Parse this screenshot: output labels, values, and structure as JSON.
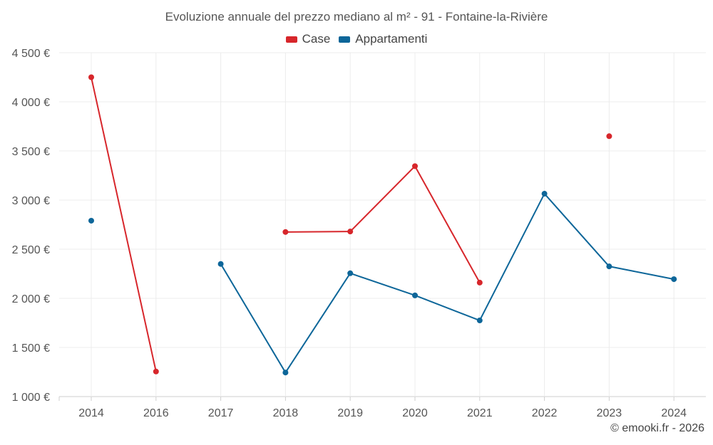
{
  "chart_data": {
    "type": "line",
    "title": "Evoluzione annuale del prezzo mediano al m² - 91 - Fontaine-la-Rivière",
    "categories": [
      "2014",
      "2016",
      "2017",
      "2018",
      "2019",
      "2020",
      "2021",
      "2022",
      "2023",
      "2024"
    ],
    "series": [
      {
        "name": "Case",
        "color": "#d7262b",
        "values": [
          4250,
          1255,
          null,
          2675,
          2680,
          3345,
          2160,
          null,
          3650,
          null
        ]
      },
      {
        "name": "Appartamenti",
        "color": "#0d6699",
        "values": [
          2790,
          null,
          2350,
          1245,
          2255,
          2030,
          1775,
          3065,
          2325,
          2195
        ]
      }
    ],
    "y_ticks": [
      "1 000 €",
      "1 500 €",
      "2 000 €",
      "2 500 €",
      "3 000 €",
      "3 500 €",
      "4 000 €",
      "4 500 €"
    ],
    "ylim": [
      1000,
      4500
    ],
    "grid": true,
    "legend_position": "top-center",
    "xlabel": "",
    "ylabel": ""
  },
  "credit": "© emooki.fr - 2026"
}
